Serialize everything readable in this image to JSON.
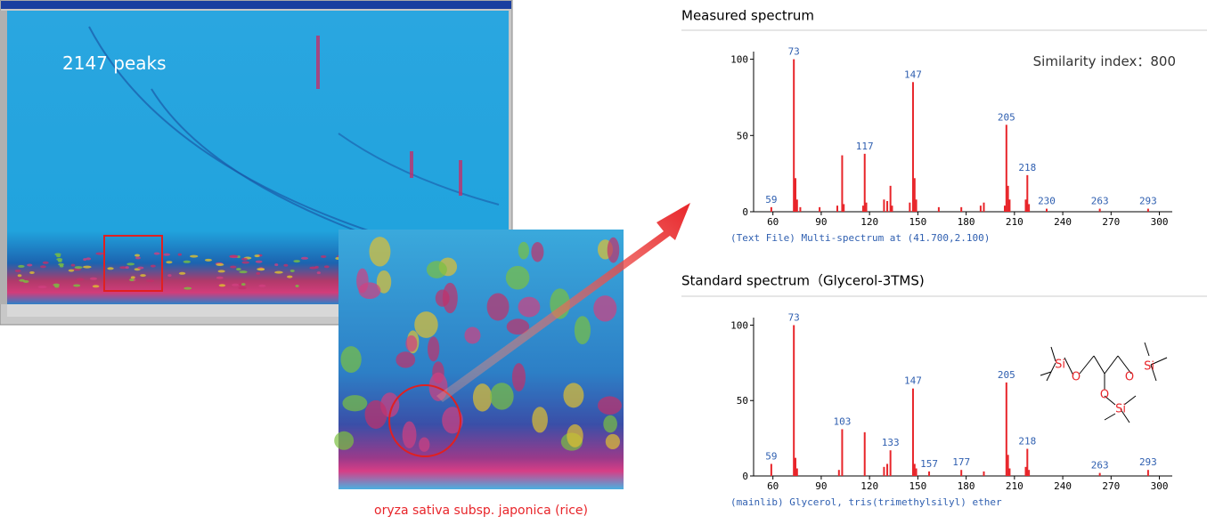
{
  "image_panel": {
    "label": "2147 peaks",
    "caption": "oryza sativa subsp. japonica (rice)"
  },
  "chart_data": [
    {
      "type": "bar",
      "title": "Measured spectrum",
      "annotation": "Similarity index：800",
      "caption": "(Text File) Multi-spectrum at (41.700,2.100)",
      "xlim": [
        48,
        308
      ],
      "xticks": [
        60,
        90,
        120,
        150,
        180,
        210,
        240,
        270,
        300
      ],
      "ylim": [
        0,
        105
      ],
      "yticks": [
        0,
        50,
        100
      ],
      "color": "#e8252a",
      "series": [
        {
          "labeled": true,
          "x": [
            59,
            73,
            117,
            147,
            205,
            218,
            230,
            263,
            293
          ],
          "values": [
            3,
            100,
            38,
            85,
            57,
            24,
            2,
            2,
            2
          ]
        },
        {
          "labeled": false,
          "x": [
            74,
            75,
            77,
            89,
            100,
            103,
            104,
            116,
            118,
            129,
            131,
            133,
            134,
            145,
            148,
            149,
            163,
            177,
            189,
            191,
            204,
            206,
            207,
            217,
            219
          ],
          "values": [
            22,
            8,
            3,
            3,
            4,
            37,
            5,
            4,
            6,
            8,
            7,
            17,
            4,
            6,
            22,
            8,
            3,
            3,
            4,
            6,
            4,
            17,
            8,
            8,
            5
          ]
        }
      ]
    },
    {
      "type": "bar",
      "title": "Standard spectrum（Glycerol-3TMS)",
      "caption": "(mainlib) Glycerol, tris(trimethylsilyl) ether",
      "structure_atoms": [
        "Si",
        "O",
        "O",
        "Si",
        "O",
        "Si"
      ],
      "xlim": [
        48,
        308
      ],
      "xticks": [
        60,
        90,
        120,
        150,
        180,
        210,
        240,
        270,
        300
      ],
      "ylim": [
        0,
        105
      ],
      "yticks": [
        0,
        50,
        100
      ],
      "color": "#e8252a",
      "series": [
        {
          "labeled": true,
          "x": [
            59,
            73,
            103,
            133,
            147,
            157,
            177,
            205,
            218,
            263,
            293
          ],
          "values": [
            8,
            100,
            31,
            17,
            58,
            3,
            4,
            62,
            18,
            2,
            4
          ]
        },
        {
          "labeled": false,
          "x": [
            74,
            75,
            101,
            117,
            129,
            131,
            148,
            149,
            191,
            206,
            207,
            217,
            219
          ],
          "values": [
            12,
            5,
            4,
            29,
            6,
            8,
            8,
            5,
            3,
            14,
            5,
            6,
            4
          ]
        }
      ]
    }
  ]
}
